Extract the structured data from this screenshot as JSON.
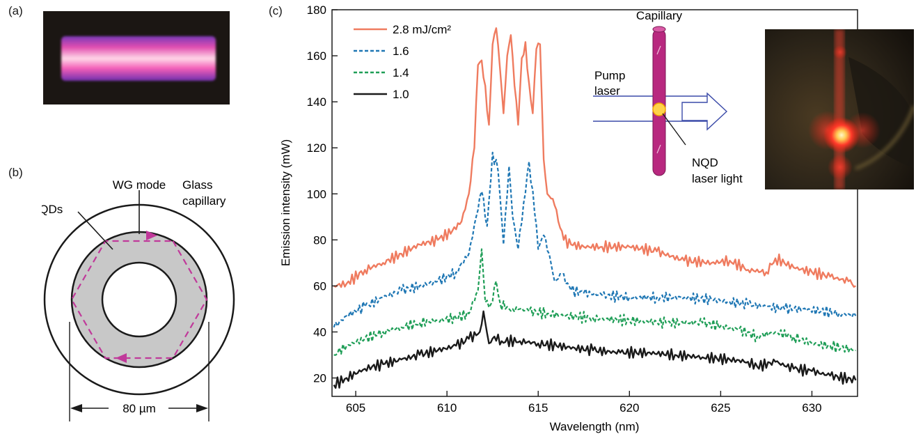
{
  "panel_labels": {
    "a": "(a)",
    "b": "(b)",
    "c": "(c)"
  },
  "diagram_b": {
    "labels": {
      "wg_mode": "WG mode",
      "glass_line1": "Glass",
      "glass_line2": "capillary",
      "nqds": "NQDs",
      "scale": "80 µm"
    },
    "colors": {
      "nqd_fill": "#c8c8c8",
      "mode_path": "#c0399a"
    }
  },
  "inset": {
    "capillary": "Capillary",
    "pump_line1": "Pump",
    "pump_line2": "laser",
    "nqd_line1": "NQD",
    "nqd_line2": "laser light",
    "colors": {
      "capillary": "#b8287f",
      "beam": "#3a4aa8",
      "spot": "#ffd24a"
    }
  },
  "chart_data": {
    "type": "line",
    "xlabel": "Wavelength (nm)",
    "ylabel": "Emission intensity (mW)",
    "xlim": [
      603.7,
      632.5
    ],
    "ylim": [
      12,
      180
    ],
    "xticks": [
      605,
      610,
      615,
      620,
      625,
      630
    ],
    "yticks": [
      20,
      40,
      60,
      80,
      100,
      120,
      140,
      160,
      180
    ],
    "legend_position": "top-left",
    "series": [
      {
        "name": "2.8 mJ/cm²",
        "color": "#ef7b5f",
        "dash": "solid",
        "x": [
          603.8,
          604.5,
          605.5,
          606.5,
          607.5,
          608.5,
          609.5,
          610.3,
          610.8,
          611.2,
          611.5,
          611.7,
          611.9,
          612.1,
          612.3,
          612.5,
          612.7,
          612.9,
          613.1,
          613.3,
          613.5,
          613.7,
          613.9,
          614.1,
          614.3,
          614.5,
          614.7,
          614.9,
          615.1,
          615.3,
          615.5,
          615.7,
          615.9,
          616.1,
          616.4,
          616.8,
          617.5,
          618.5,
          620,
          621.5,
          623,
          624.5,
          625.5,
          626.5,
          627.5,
          628,
          629,
          630,
          631,
          632,
          632.4
        ],
        "y": [
          60,
          61,
          67,
          70,
          74,
          78,
          80,
          84,
          88,
          100,
          120,
          156,
          158,
          147,
          130,
          165,
          172,
          155,
          135,
          160,
          169,
          147,
          130,
          159,
          166,
          148,
          135,
          163,
          165,
          115,
          100,
          98,
          95,
          88,
          80,
          78,
          77,
          77,
          77,
          75,
          71,
          70,
          71,
          67,
          66,
          72,
          68,
          66,
          64,
          62,
          60
        ]
      },
      {
        "name": "1.6",
        "color": "#1f77b4",
        "dash": "dashed",
        "x": [
          603.8,
          604.5,
          605.5,
          606.5,
          607.5,
          608.5,
          609.5,
          610.5,
          611.2,
          611.6,
          611.9,
          612.2,
          612.5,
          612.8,
          613.1,
          613.4,
          613.6,
          613.9,
          614.2,
          614.5,
          614.8,
          615.0,
          615.3,
          615.6,
          615.9,
          616.3,
          616.8,
          617.5,
          618.5,
          620,
          621.5,
          623,
          624.5,
          625.5,
          626.5,
          627.5,
          628.5,
          629.5,
          630.5,
          631.5,
          632.4
        ],
        "y": [
          42,
          47,
          51,
          55,
          58,
          60,
          62,
          66,
          74,
          90,
          101,
          86,
          118,
          110,
          78,
          112,
          90,
          76,
          96,
          114,
          92,
          76,
          82,
          74,
          62,
          65,
          58,
          57,
          56,
          55,
          55,
          55,
          54,
          53,
          52,
          51,
          50,
          50,
          49,
          48,
          47
        ]
      },
      {
        "name": "1.4",
        "color": "#1f9e57",
        "dash": "dashed",
        "x": [
          603.8,
          604.5,
          605.5,
          606.5,
          607.5,
          608.5,
          609.5,
          610.5,
          611.2,
          611.7,
          611.9,
          612.1,
          612.4,
          612.7,
          612.9,
          613.2,
          613.6,
          614,
          614.5,
          615.5,
          616.5,
          618,
          620,
          622,
          624,
          626,
          627,
          628,
          629,
          630,
          631,
          632.4
        ],
        "y": [
          30,
          34,
          37,
          40,
          42,
          44,
          45,
          46,
          48,
          58,
          76,
          53,
          52,
          62,
          53,
          50,
          50,
          50,
          49,
          48,
          47,
          46,
          45,
          44,
          44,
          41,
          38,
          40,
          38,
          35,
          34,
          32
        ]
      },
      {
        "name": "1.0",
        "color": "#1a1a1a",
        "dash": "solid",
        "x": [
          603.8,
          604.5,
          605.5,
          606.5,
          607.5,
          608.5,
          609.5,
          610.5,
          611.2,
          611.8,
          612.0,
          612.3,
          612.6,
          613,
          614,
          615,
          616,
          617,
          618,
          619.5,
          621,
          622.5,
          624,
          625.5,
          626.5,
          627,
          628,
          629,
          630,
          631,
          632.4
        ],
        "y": [
          17,
          20,
          24,
          26,
          28,
          30,
          32,
          34,
          37,
          40,
          49,
          35,
          38,
          36,
          36,
          35,
          34,
          33,
          32,
          31,
          31,
          30,
          29,
          28,
          27,
          25,
          27,
          24,
          23,
          21,
          19
        ]
      }
    ]
  }
}
